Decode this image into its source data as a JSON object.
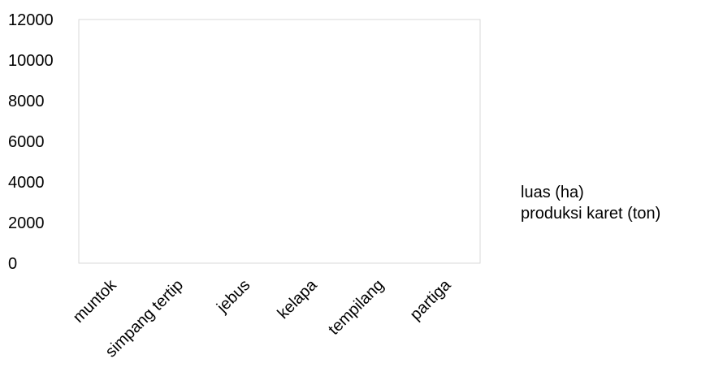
{
  "chart_data": {
    "type": "bar",
    "categories": [
      "muntok",
      "simpang tertip",
      "jebus",
      "kelapa",
      "tempilang",
      "partiga"
    ],
    "series": [
      {
        "name": "luas (ha)",
        "values": [
          0,
          0,
          0,
          0,
          0,
          0
        ]
      },
      {
        "name": "produksi karet (ton)",
        "values": [
          0,
          0,
          0,
          0,
          0,
          0
        ]
      }
    ],
    "y_ticks": [
      "0",
      "2000",
      "4000",
      "6000",
      "8000",
      "10000",
      "12000"
    ],
    "ylim": [
      0,
      12000
    ],
    "grid": false,
    "legend_position": "right",
    "colors": {
      "plot_border": "#d9d9d9",
      "text": "#000000",
      "series": [
        "#4f81bd",
        "#c0504d"
      ]
    }
  }
}
